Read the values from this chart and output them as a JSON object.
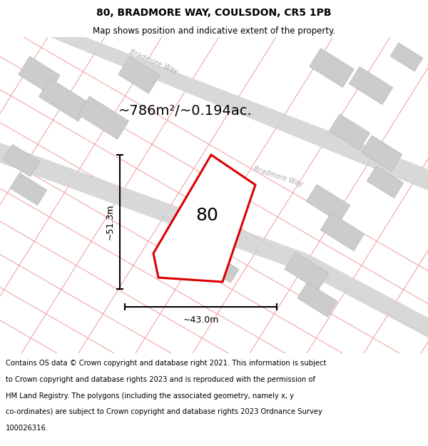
{
  "title_line1": "80, BRADMORE WAY, COULSDON, CR5 1PB",
  "title_line2": "Map shows position and indicative extent of the property.",
  "area_label": "~786m²/~0.194ac.",
  "dim_width": "~43.0m",
  "dim_height": "~51.3m",
  "plot_number": "80",
  "footer_lines": [
    "Contains OS data © Crown copyright and database right 2021. This information is subject",
    "to Crown copyright and database rights 2023 and is reproduced with the permission of",
    "HM Land Registry. The polygons (including the associated geometry, namely x, y",
    "co-ordinates) are subject to Crown copyright and database rights 2023 Ordnance Survey",
    "100026316."
  ],
  "map_bg": "#ffffff",
  "road_color": "#d4d4d4",
  "building_color": "#cccccc",
  "building_edge": "#bbbbbb",
  "plot_color": "#dd0000",
  "pink_line_color": "#f0a0a0",
  "street_label_color": "#aaaaaa",
  "title_fontsize": 10,
  "subtitle_fontsize": 8.5,
  "footer_fontsize": 7.2,
  "area_fontsize": 14,
  "plot_num_fontsize": 18,
  "dim_fontsize": 9,
  "street_fontsize": 7
}
